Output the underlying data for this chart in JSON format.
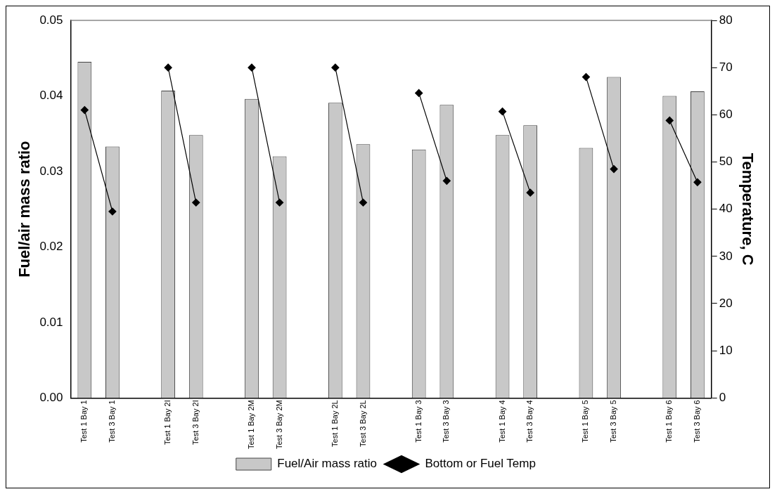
{
  "chart_data": {
    "type": "bar",
    "categories": [
      "Test 1 Bay 1",
      "Test 3 Bay 1",
      null,
      "Test 1 Bay 2I",
      "Test 3 Bay 2I",
      null,
      "Test 1 Bay 2M",
      "Test 3 Bay 2M",
      null,
      "Test 1 Bay 2L",
      "Test 3 Bay 2L",
      null,
      "Test 1 Bay 3",
      "Test 3 Bay 3",
      null,
      "Test 1 Bay 4",
      "Test 3 Bay 4",
      null,
      "Test 1 Bay 5",
      "Test 3 Bay 5",
      null,
      "Test 1 Bay 6",
      "Test 3 Bay 6"
    ],
    "series": [
      {
        "name": "Fuel/Air mass ratio",
        "color": "#c8c8c8",
        "values": [
          0.0445,
          0.0333,
          null,
          0.0407,
          0.0348,
          null,
          0.0396,
          0.032,
          null,
          0.0391,
          0.0336,
          null,
          0.0329,
          0.0388,
          null,
          0.0348,
          0.0361,
          null,
          0.0331,
          0.0425,
          null,
          0.04,
          0.0406
        ]
      },
      {
        "name": "Bottom or Fuel Temp",
        "type": "line",
        "axis": "y2",
        "color": "#000000",
        "marker": "diamond",
        "values": [
          61,
          39.5,
          null,
          70,
          41.4,
          null,
          70,
          41.4,
          null,
          70,
          41.4,
          null,
          64.6,
          46,
          null,
          60.7,
          43.5,
          null,
          68,
          48.5,
          null,
          58.8,
          45.7
        ]
      }
    ],
    "ylabel": "Fuel/air mass ratio",
    "y2label": "Temperature, C",
    "ylim": [
      0,
      0.05
    ],
    "yticks": [
      {
        "value": 0,
        "label": "0.00"
      },
      {
        "value": 0.01,
        "label": "0.01"
      },
      {
        "value": 0.02,
        "label": "0.02"
      },
      {
        "value": 0.03,
        "label": "0.03"
      },
      {
        "value": 0.04,
        "label": "0.04"
      },
      {
        "value": 0.05,
        "label": "0.05"
      }
    ],
    "y2lim": [
      0,
      80
    ],
    "y2ticks": [
      0,
      10,
      20,
      30,
      40,
      50,
      60,
      70,
      80
    ],
    "legend": "bottom",
    "grid": false
  }
}
